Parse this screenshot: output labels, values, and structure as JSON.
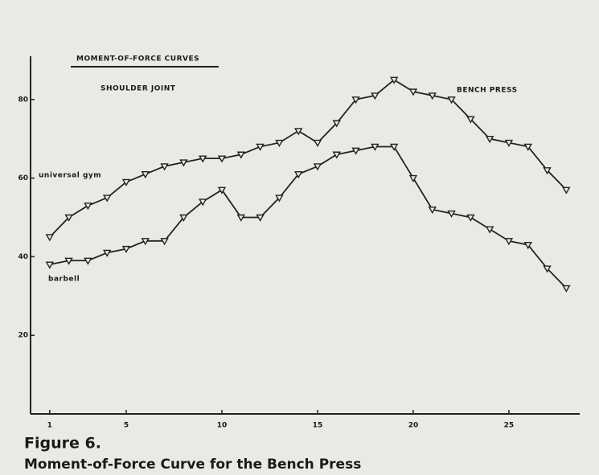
{
  "chart_data": {
    "type": "line",
    "title": "MOMENT-OF-FORCE CURVES",
    "subtitle": "SHOULDER JOINT",
    "annotations": [
      "BENCH PRESS"
    ],
    "caption": {
      "label": "Figure 6.",
      "text": "Moment-of-Force Curve for the Bench Press"
    },
    "x": [
      1,
      2,
      3,
      4,
      5,
      6,
      7,
      8,
      9,
      10,
      11,
      12,
      13,
      14,
      15,
      16,
      17,
      18,
      19,
      20,
      21,
      22,
      23,
      24,
      25,
      26,
      27,
      28
    ],
    "xlim": [
      0,
      28.7
    ],
    "xticks": [
      1,
      5,
      10,
      15,
      20,
      25
    ],
    "ylim": [
      0,
      91
    ],
    "yticks": [
      20,
      40,
      60,
      80
    ],
    "series": [
      {
        "name": "universal gym",
        "color": "#222222",
        "values": [
          45,
          50,
          53,
          55,
          59,
          61,
          63,
          64,
          65,
          65,
          66,
          68,
          69,
          72,
          69,
          74,
          80,
          81,
          85,
          82,
          81,
          80,
          75,
          70,
          69,
          68,
          62,
          57
        ]
      },
      {
        "name": "barbell",
        "color": "#222222",
        "values": [
          38,
          39,
          39,
          41,
          42,
          44,
          44,
          50,
          54,
          57,
          50,
          50,
          55,
          61,
          63,
          66,
          67,
          68,
          68,
          60,
          52,
          51,
          50,
          47,
          44,
          43,
          37,
          32
        ]
      }
    ]
  }
}
